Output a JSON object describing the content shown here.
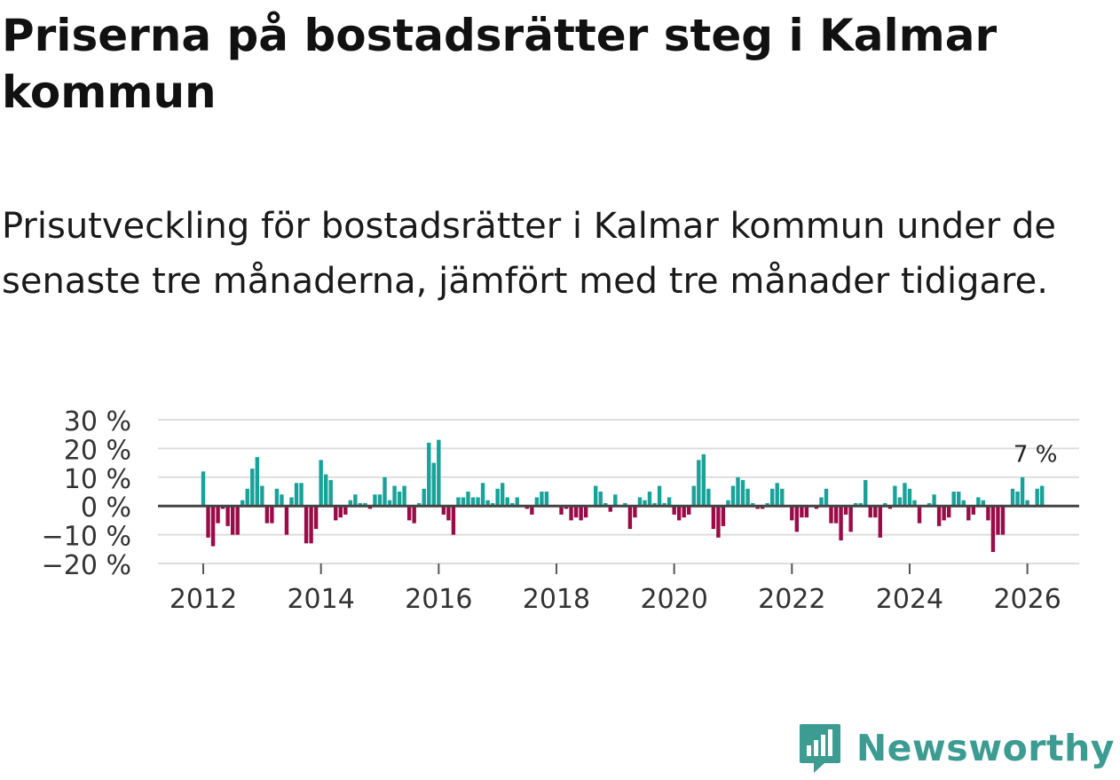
{
  "title": "Priserna på bostadsrätter steg i Kalmar kommun",
  "subtitle": "Prisutveckling för bostadsrätter i Kalmar kommun under de senaste tre månaderna, jämfört med tre månader tidigare.",
  "brand": {
    "name": "Newsworthy",
    "logo": "newsworthy-logo-icon"
  },
  "colors": {
    "positive": "#18a299",
    "negative": "#9a0b48",
    "grid": "#dddddd",
    "zero": "#444444",
    "brand": "#3c9c92"
  },
  "chart_data": {
    "type": "bar",
    "title": "",
    "xlabel": "",
    "ylabel": "",
    "ylim": [
      -20,
      30
    ],
    "yticks": [
      30,
      20,
      10,
      0,
      -10,
      -20
    ],
    "ytick_labels": [
      "30 %",
      "20 %",
      "10 %",
      "0 %",
      "−10 %",
      "−20 %"
    ],
    "xticks": [
      2012,
      2014,
      2016,
      2018,
      2020,
      2022,
      2024,
      2026
    ],
    "xtick_labels": [
      "2012",
      "2014",
      "2016",
      "2018",
      "2020",
      "2022",
      "2024",
      "2026"
    ],
    "x_start": "2012-01",
    "x_end": "2026-03",
    "annotation": {
      "text": "7 %",
      "target": "2026-03"
    },
    "series": [
      {
        "name": "Prisutveckling",
        "values": [
          12,
          -11,
          -14,
          -6,
          -1,
          -7,
          -10,
          -10,
          2,
          6,
          13,
          17,
          7,
          -6,
          -6,
          6,
          4,
          -10,
          3,
          8,
          8,
          -13,
          -13,
          -8,
          16,
          11,
          9,
          -5,
          -4,
          -3,
          2,
          4,
          1,
          1,
          -1,
          4,
          4,
          10,
          2,
          7,
          5,
          7,
          -5,
          -6,
          1,
          6,
          22,
          15,
          23,
          -3,
          -5,
          -10,
          3,
          3,
          5,
          3,
          3,
          8,
          2,
          1,
          6,
          8,
          3,
          1,
          3,
          0,
          -1,
          -3,
          3,
          5,
          5,
          0,
          0,
          -3,
          -1,
          -5,
          -4,
          -5,
          -4,
          0,
          7,
          5,
          1,
          -2,
          4,
          0,
          1,
          -8,
          -4,
          3,
          2,
          5,
          1,
          7,
          1,
          3,
          -3,
          -5,
          -4,
          -3,
          7,
          16,
          18,
          6,
          -8,
          -11,
          -7,
          2,
          7,
          10,
          9,
          6,
          1,
          -1,
          -1,
          1,
          6,
          8,
          6,
          0,
          -5,
          -9,
          -4,
          -4,
          0,
          -1,
          3,
          6,
          -6,
          -6,
          -12,
          -3,
          -9,
          1,
          1,
          9,
          -4,
          -4,
          -11,
          1,
          -1,
          7,
          3,
          8,
          6,
          2,
          -6,
          0,
          1,
          4,
          -7,
          -5,
          -4,
          5,
          5,
          2,
          -5,
          -3,
          3,
          2,
          -5,
          -16,
          -10,
          -10,
          0,
          6,
          5,
          10,
          2,
          0,
          6,
          7
        ]
      }
    ]
  }
}
